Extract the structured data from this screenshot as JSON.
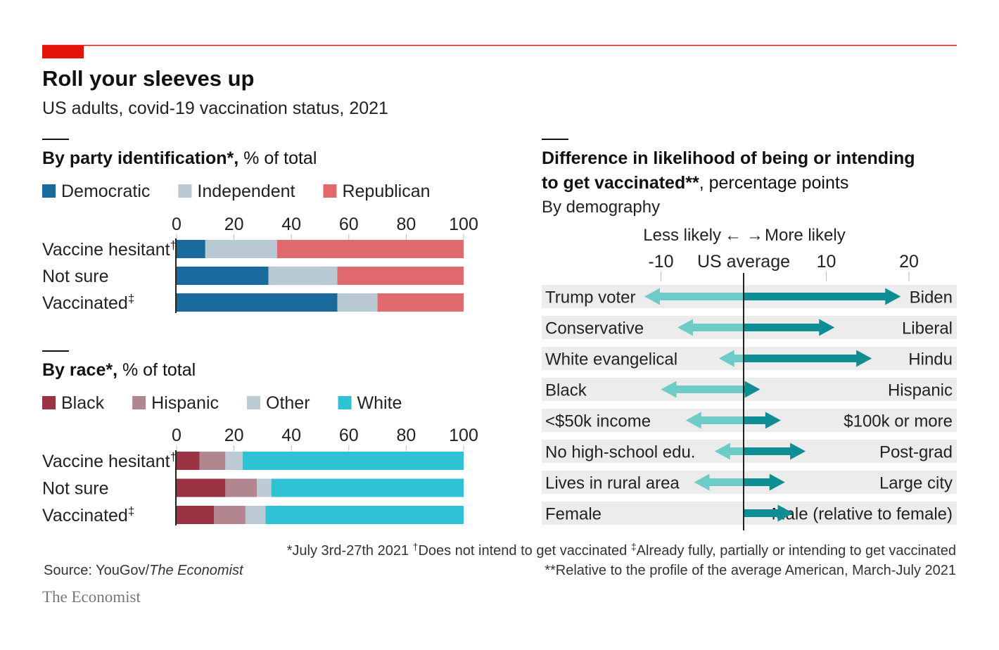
{
  "title": "Roll your sleeves up",
  "subtitle": "US adults, covid-19 vaccination status, 2021",
  "colors": {
    "red_accent": "#e3120b",
    "democratic": "#1a6a9e",
    "independent": "#b8c9d4",
    "republican": "#e06a6d",
    "black": "#9c3345",
    "hispanic": "#b2868f",
    "other": "#bccbd6",
    "white": "#2fc1d4",
    "less_arrow": "#6fcbc7",
    "more_arrow": "#0e8d94",
    "row_bg": "#ececec"
  },
  "chart_data": [
    {
      "type": "bar",
      "orientation": "horizontal",
      "stacked": true,
      "title": "By party identification*",
      "title_suffix": ", % of total",
      "categories": [
        "Vaccine hesitant",
        "Not sure",
        "Vaccinated"
      ],
      "category_marks": [
        "†",
        "",
        "‡"
      ],
      "series": [
        {
          "name": "Democratic",
          "values": [
            10,
            32,
            56
          ]
        },
        {
          "name": "Independent",
          "values": [
            25,
            24,
            14
          ]
        },
        {
          "name": "Republican",
          "values": [
            65,
            44,
            30
          ]
        }
      ],
      "xlim": [
        0,
        100
      ],
      "ticks": [
        "0",
        "20",
        "40",
        "60",
        "80",
        "100"
      ],
      "legend": "top"
    },
    {
      "type": "bar",
      "orientation": "horizontal",
      "stacked": true,
      "title": "By race*",
      "title_suffix": ", % of total",
      "categories": [
        "Vaccine hesitant",
        "Not sure",
        "Vaccinated"
      ],
      "category_marks": [
        "†",
        "",
        "‡"
      ],
      "series": [
        {
          "name": "Black",
          "values": [
            8,
            17,
            13
          ]
        },
        {
          "name": "Hispanic",
          "values": [
            9,
            11,
            11
          ]
        },
        {
          "name": "Other",
          "values": [
            6,
            5,
            7
          ]
        },
        {
          "name": "White",
          "values": [
            77,
            67,
            69
          ]
        }
      ],
      "xlim": [
        0,
        100
      ],
      "ticks": [
        "0",
        "20",
        "40",
        "60",
        "80",
        "100"
      ],
      "legend": "top"
    },
    {
      "type": "bar",
      "orientation": "horizontal",
      "diverging": true,
      "title": "Difference in likelihood of being or intending to get vaccinated**",
      "title_suffix": ", percentage points",
      "subtitle": "By demography",
      "direction_labels": {
        "less": "Less likely",
        "more": "More likely"
      },
      "center_label": "US average",
      "ticks": [
        {
          "value": -10,
          "label": "-10"
        },
        {
          "value": 10,
          "label": "10"
        },
        {
          "value": 20,
          "label": "20"
        }
      ],
      "xlim": [
        -16,
        26
      ],
      "rows": [
        {
          "left": "Trump voter",
          "right": "Biden",
          "less": -12,
          "more": 19
        },
        {
          "left": "Conservative",
          "right": "Liberal",
          "less": -8,
          "more": 11
        },
        {
          "left": "White evangelical",
          "right": "Hindu",
          "less": -3,
          "more": 15.5
        },
        {
          "left": "Black",
          "right": "Hispanic",
          "less": -10,
          "more": 2
        },
        {
          "left": "<$50k income",
          "right": "$100k or more",
          "less": -7,
          "more": 4.5
        },
        {
          "left": "No high-school edu.",
          "right": "Post-grad",
          "less": -3.5,
          "more": 7.5
        },
        {
          "left": "Lives in rural area",
          "right": "Large city",
          "less": -6,
          "more": 5
        },
        {
          "left": "Female",
          "right": "Male (relative to female)",
          "less": 0,
          "more": 6
        }
      ]
    }
  ],
  "footnotes": {
    "note1": "*July 3rd-27th 2021",
    "note2": "Does not intend to get vaccinated",
    "note2_mark": "†",
    "note3": "Already fully, partially or intending to get vaccinated",
    "note3_mark": "‡",
    "note4": "**Relative to the profile of the average American, March-July 2021"
  },
  "source": {
    "prefix": "Source: YouGov/",
    "italic": "The Economist"
  },
  "brand": "The Economist"
}
